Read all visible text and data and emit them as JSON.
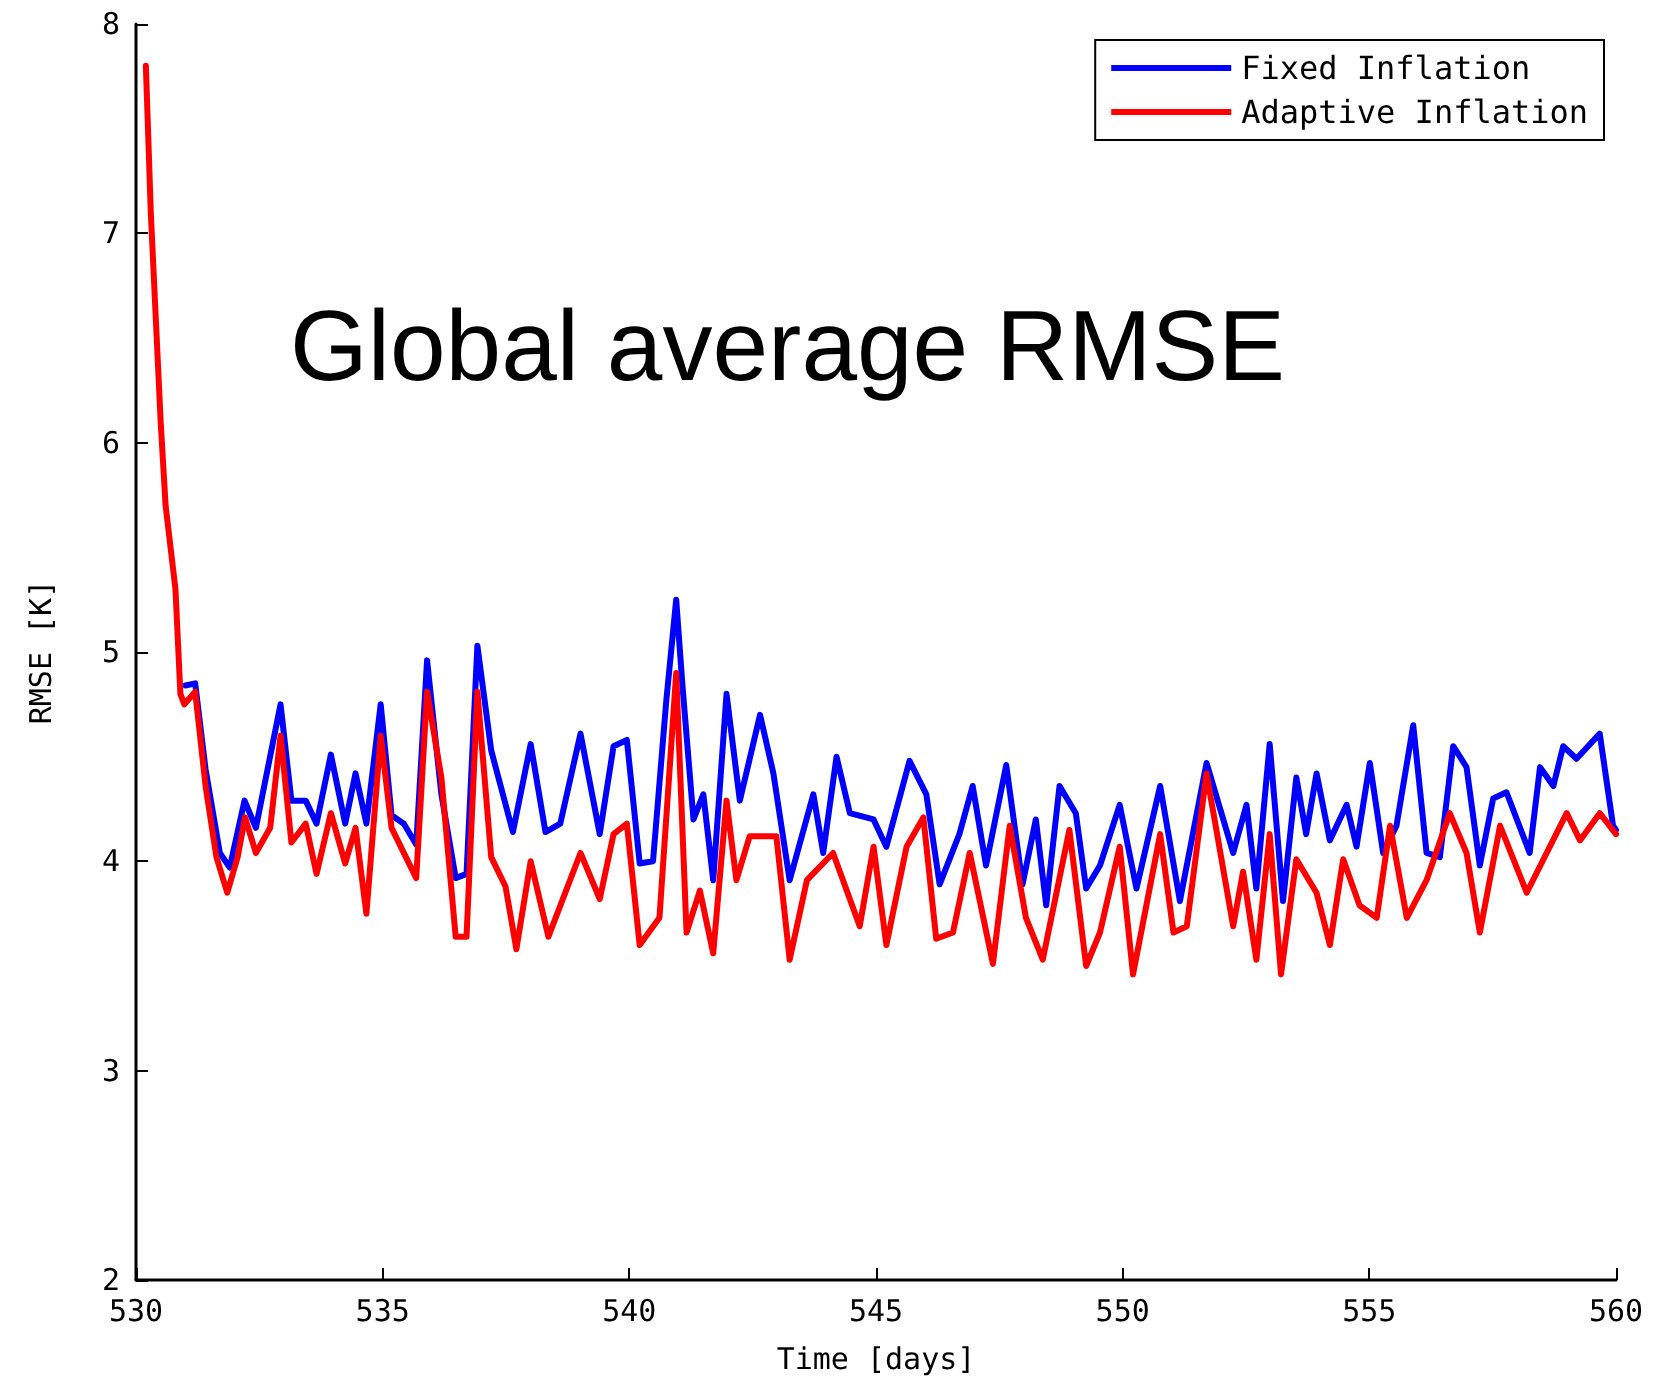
{
  "chart_data": {
    "type": "line",
    "xlabel": "Time [days]",
    "ylabel": "RMSE [K]",
    "annotations": [
      "Global average RMSE"
    ],
    "xlim": [
      530,
      560
    ],
    "xticks": [
      530,
      535,
      540,
      545,
      550,
      555,
      560
    ],
    "ylim": [
      2,
      8
    ],
    "yticks": [
      2,
      3,
      4,
      5,
      6,
      7,
      8
    ],
    "legend": "top right",
    "grid": false,
    "marker": "none",
    "line_style": "solid",
    "series": [
      {
        "name": "Fixed Inflation",
        "color": "#0000ff",
        "x": [
          531.0,
          531.2,
          531.41,
          531.7,
          531.9,
          532.2,
          532.43,
          532.93,
          533.15,
          533.44,
          533.66,
          533.95,
          534.24,
          534.45,
          534.67,
          534.96,
          535.18,
          535.43,
          535.68,
          535.9,
          536.19,
          536.48,
          536.7,
          536.92,
          537.2,
          537.64,
          538.0,
          538.3,
          538.6,
          539.01,
          539.4,
          539.68,
          539.95,
          540.21,
          540.48,
          540.75,
          540.95,
          541.08,
          541.3,
          541.5,
          541.7,
          541.97,
          542.24,
          542.65,
          542.92,
          543.25,
          543.73,
          543.93,
          544.2,
          544.47,
          544.95,
          545.21,
          545.68,
          546.02,
          546.29,
          546.69,
          546.96,
          547.23,
          547.64,
          547.97,
          548.24,
          548.45,
          548.72,
          549.05,
          549.26,
          549.54,
          549.94,
          550.28,
          550.76,
          551.16,
          551.7,
          552.24,
          552.51,
          552.71,
          552.98,
          553.25,
          553.52,
          553.72,
          553.93,
          554.2,
          554.54,
          554.74,
          555.01,
          555.28,
          555.55,
          555.89,
          556.16,
          556.43,
          556.7,
          556.97,
          557.24,
          557.51,
          557.78,
          558.25,
          558.46,
          558.73,
          558.93,
          559.2,
          559.67,
          559.94,
          560.0
        ],
        "values": [
          4.84,
          4.85,
          4.44,
          4.04,
          3.97,
          4.29,
          4.16,
          4.75,
          4.29,
          4.29,
          4.18,
          4.51,
          4.18,
          4.42,
          4.18,
          4.75,
          4.22,
          4.18,
          4.08,
          4.96,
          4.32,
          3.92,
          3.94,
          5.03,
          4.53,
          4.14,
          4.56,
          4.14,
          4.18,
          4.61,
          4.13,
          4.55,
          4.58,
          3.99,
          4.0,
          4.77,
          5.25,
          4.83,
          4.2,
          4.32,
          3.91,
          4.8,
          4.29,
          4.7,
          4.42,
          3.91,
          4.32,
          4.04,
          4.5,
          4.23,
          4.2,
          4.07,
          4.48,
          4.32,
          3.89,
          4.13,
          4.36,
          3.98,
          4.46,
          3.89,
          4.2,
          3.79,
          4.36,
          4.23,
          3.87,
          3.98,
          4.27,
          3.87,
          4.36,
          3.81,
          4.47,
          4.04,
          4.27,
          3.87,
          4.56,
          3.81,
          4.4,
          4.13,
          4.42,
          4.1,
          4.27,
          4.07,
          4.47,
          4.04,
          4.17,
          4.65,
          4.04,
          4.02,
          4.55,
          4.45,
          3.98,
          4.3,
          4.33,
          4.04,
          4.45,
          4.36,
          4.55,
          4.49,
          4.61,
          4.17,
          4.15
        ]
      },
      {
        "name": "Adaptive Inflation",
        "color": "#ff0000",
        "x": [
          530.2,
          530.3,
          530.4,
          530.5,
          530.6,
          530.8,
          530.9,
          530.98,
          531.2,
          531.41,
          531.63,
          531.85,
          532.06,
          532.21,
          532.43,
          532.72,
          532.93,
          533.15,
          533.44,
          533.66,
          533.95,
          534.24,
          534.45,
          534.67,
          534.96,
          535.18,
          535.68,
          535.9,
          536.19,
          536.48,
          536.7,
          536.92,
          537.2,
          537.49,
          537.71,
          538.0,
          538.36,
          539.01,
          539.4,
          539.68,
          539.95,
          540.21,
          540.61,
          540.95,
          541.16,
          541.43,
          541.7,
          541.97,
          542.17,
          542.44,
          542.98,
          543.25,
          543.6,
          544.13,
          544.67,
          544.95,
          545.21,
          545.62,
          545.96,
          546.22,
          546.56,
          546.9,
          547.37,
          547.71,
          548.04,
          548.38,
          548.92,
          549.26,
          549.54,
          549.94,
          550.21,
          550.76,
          551.03,
          551.3,
          551.7,
          552.24,
          552.44,
          552.71,
          552.98,
          553.21,
          553.52,
          553.93,
          554.2,
          554.47,
          554.8,
          555.15,
          555.42,
          555.76,
          556.16,
          556.63,
          556.97,
          557.24,
          557.65,
          558.19,
          559.0,
          559.27,
          559.67,
          560.0
        ],
        "values": [
          7.8,
          7.1,
          6.6,
          6.1,
          5.7,
          5.3,
          4.8,
          4.75,
          4.81,
          4.36,
          4.02,
          3.85,
          4.02,
          4.21,
          4.04,
          4.16,
          4.6,
          4.09,
          4.18,
          3.94,
          4.23,
          3.99,
          4.16,
          3.75,
          4.6,
          4.16,
          3.92,
          4.81,
          4.4,
          3.64,
          3.64,
          4.81,
          4.02,
          3.88,
          3.58,
          4.0,
          3.64,
          4.04,
          3.82,
          4.13,
          4.18,
          3.6,
          3.73,
          4.9,
          3.66,
          3.86,
          3.56,
          4.29,
          3.91,
          4.12,
          4.12,
          3.53,
          3.91,
          4.04,
          3.69,
          4.07,
          3.6,
          4.07,
          4.21,
          3.63,
          3.66,
          4.04,
          3.51,
          4.17,
          3.73,
          3.53,
          4.15,
          3.5,
          3.66,
          4.07,
          3.46,
          4.13,
          3.66,
          3.69,
          4.42,
          3.69,
          3.95,
          3.53,
          4.13,
          3.46,
          4.01,
          3.85,
          3.6,
          4.01,
          3.79,
          3.73,
          4.17,
          3.73,
          3.91,
          4.23,
          4.04,
          3.66,
          4.17,
          3.85,
          4.23,
          4.1,
          4.23,
          4.13
        ]
      }
    ]
  }
}
